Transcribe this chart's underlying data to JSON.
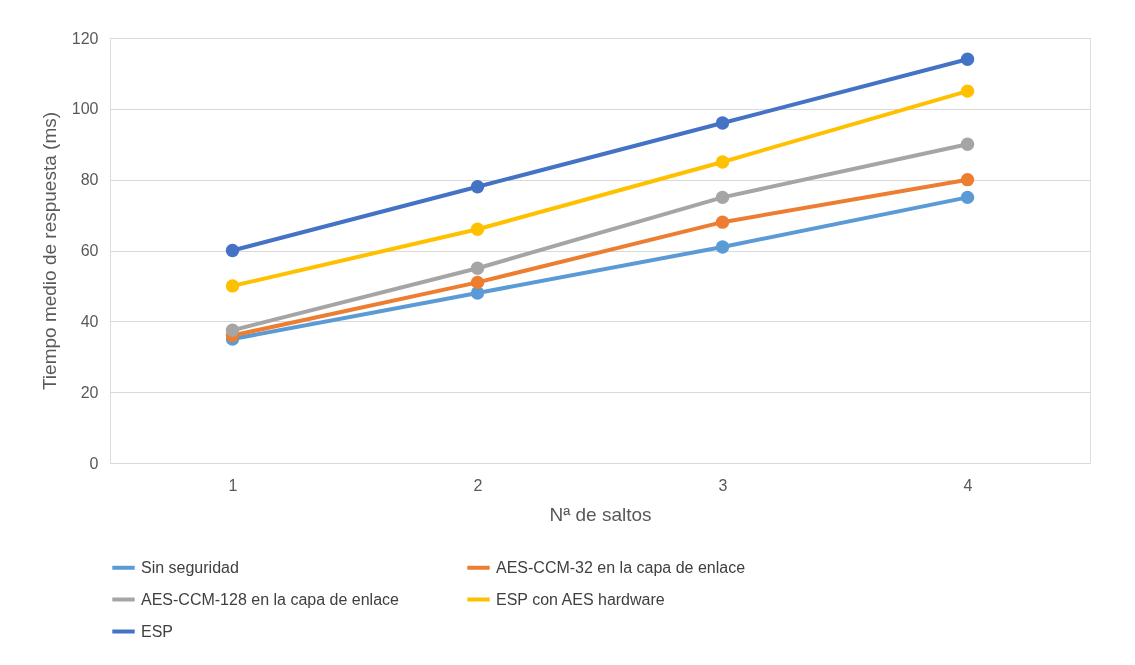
{
  "chart_data": {
    "type": "line",
    "xlabel": "Nª de saltos",
    "ylabel": "Tiempo medio de respuesta (ms)",
    "categories": [
      "1",
      "2",
      "3",
      "4"
    ],
    "series": [
      {
        "name": "Sin seguridad",
        "color": "#5b9bd5",
        "values": [
          35,
          48,
          61,
          75
        ]
      },
      {
        "name": "AES-CCM-32 en la capa de enlace",
        "color": "#ed7d31",
        "values": [
          36,
          51,
          68,
          80
        ]
      },
      {
        "name": "AES-CCM-128 en la capa de enlace",
        "color": "#a5a5a5",
        "values": [
          37.5,
          55,
          75,
          90
        ]
      },
      {
        "name": "ESP con AES hardware",
        "color": "#ffc000",
        "values": [
          50,
          66,
          85,
          105
        ]
      },
      {
        "name": "ESP",
        "color": "#4472c4",
        "values": [
          60,
          78,
          96,
          114
        ]
      }
    ],
    "ylim": [
      0,
      120
    ],
    "yticks": [
      0,
      20,
      40,
      60,
      80,
      100,
      120
    ],
    "grid": "y",
    "legend": "bottom",
    "marker": "circle",
    "line_style": "solid"
  }
}
